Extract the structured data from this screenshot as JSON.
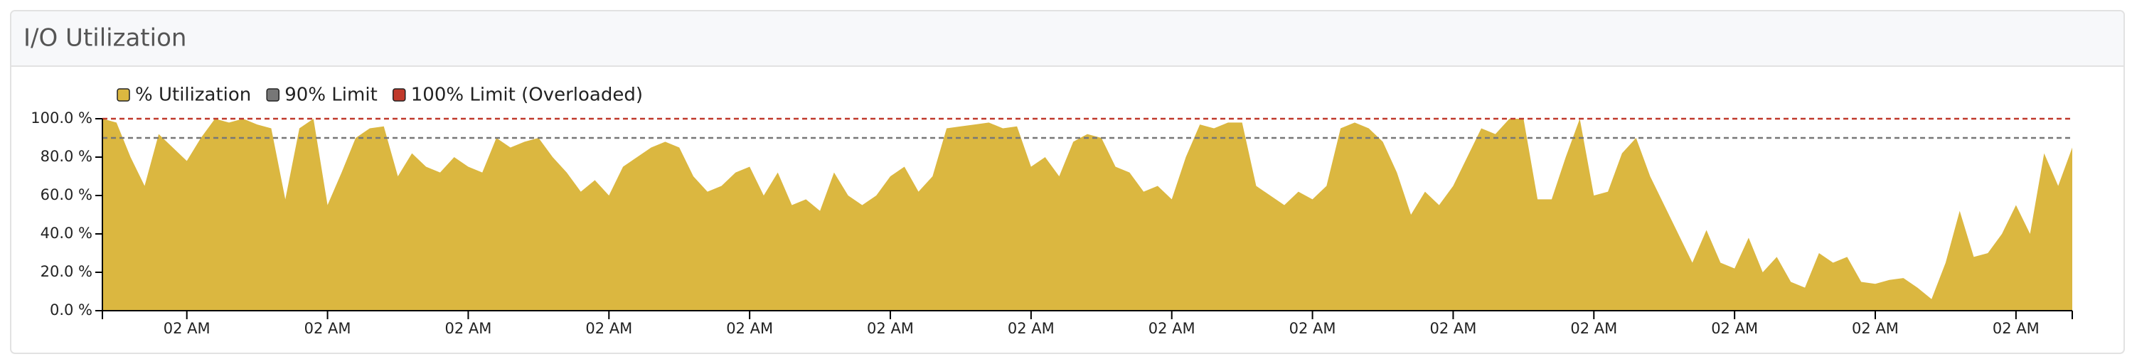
{
  "chart_data": {
    "type": "area",
    "title": "I/O Utilization",
    "categories": [
      null,
      null,
      null,
      null,
      null,
      null,
      "02 AM",
      null,
      null,
      null,
      null,
      null,
      null,
      null,
      null,
      null,
      "02 AM",
      null,
      null,
      null,
      null,
      null,
      null,
      null,
      null,
      null,
      "02 AM",
      null,
      null,
      null,
      null,
      null,
      null,
      null,
      null,
      null,
      "02 AM",
      null,
      null,
      null,
      null,
      null,
      null,
      null,
      null,
      null,
      "02 AM",
      null,
      null,
      null,
      null,
      null,
      null,
      null,
      null,
      null,
      "02 AM",
      null,
      null,
      null,
      null,
      null,
      null,
      null,
      null,
      null,
      "02 AM",
      null,
      null,
      null,
      null,
      null,
      null,
      null,
      null,
      null,
      "02 AM",
      null,
      null,
      null,
      null,
      null,
      null,
      null,
      null,
      null,
      "02 AM",
      null,
      null,
      null,
      null,
      null,
      null,
      null,
      null,
      null,
      "02 AM",
      null,
      null,
      null,
      null,
      null,
      null,
      null,
      null,
      null,
      "02 AM",
      null,
      null,
      null,
      null,
      null,
      null,
      null,
      null,
      null,
      "02 AM",
      null,
      null,
      null,
      null,
      null,
      null,
      null,
      null,
      null,
      "02 AM",
      null,
      null,
      null,
      null,
      null,
      null,
      null,
      null,
      null,
      "02 AM",
      null,
      null,
      null,
      null
    ],
    "series": [
      {
        "name": "% Utilization",
        "color": "#dbb740",
        "values": [
          100,
          98,
          80,
          65,
          92,
          85,
          78,
          90,
          100,
          98,
          100,
          97,
          95,
          58,
          95,
          100,
          55,
          72,
          90,
          95,
          96,
          70,
          82,
          75,
          72,
          80,
          75,
          72,
          90,
          85,
          88,
          90,
          80,
          72,
          62,
          68,
          60,
          75,
          80,
          85,
          88,
          85,
          70,
          62,
          65,
          72,
          75,
          60,
          72,
          55,
          58,
          52,
          72,
          60,
          55,
          60,
          70,
          75,
          62,
          70,
          95,
          96,
          97,
          98,
          95,
          96,
          75,
          80,
          70,
          88,
          92,
          90,
          75,
          72,
          62,
          65,
          58,
          80,
          97,
          95,
          98,
          98,
          65,
          60,
          55,
          62,
          58,
          65,
          95,
          98,
          95,
          88,
          72,
          50,
          62,
          55,
          65,
          80,
          95,
          92,
          100,
          100,
          58,
          58,
          80,
          100,
          60,
          62,
          82,
          90,
          70,
          55,
          40,
          25,
          42,
          25,
          22,
          38,
          20,
          28,
          15,
          12,
          30,
          25,
          28,
          15,
          14,
          16,
          17,
          12,
          6,
          25,
          52,
          28,
          30,
          40,
          55,
          40,
          82,
          65,
          85
        ]
      }
    ],
    "reference_lines": [
      {
        "name": "90% Limit",
        "value": 90,
        "color": "#777777"
      },
      {
        "name": "100% Limit (Overloaded)",
        "value": 100,
        "color": "#c0392b"
      }
    ],
    "ylim": [
      0,
      100
    ],
    "yticks": [
      {
        "value": 0,
        "label": "0.0 %"
      },
      {
        "value": 20,
        "label": "20.0 %"
      },
      {
        "value": 40,
        "label": "40.0 %"
      },
      {
        "value": 60,
        "label": "60.0 %"
      },
      {
        "value": 80,
        "label": "80.0 %"
      },
      {
        "value": 100,
        "label": "100.0 %"
      }
    ],
    "grid": false
  }
}
